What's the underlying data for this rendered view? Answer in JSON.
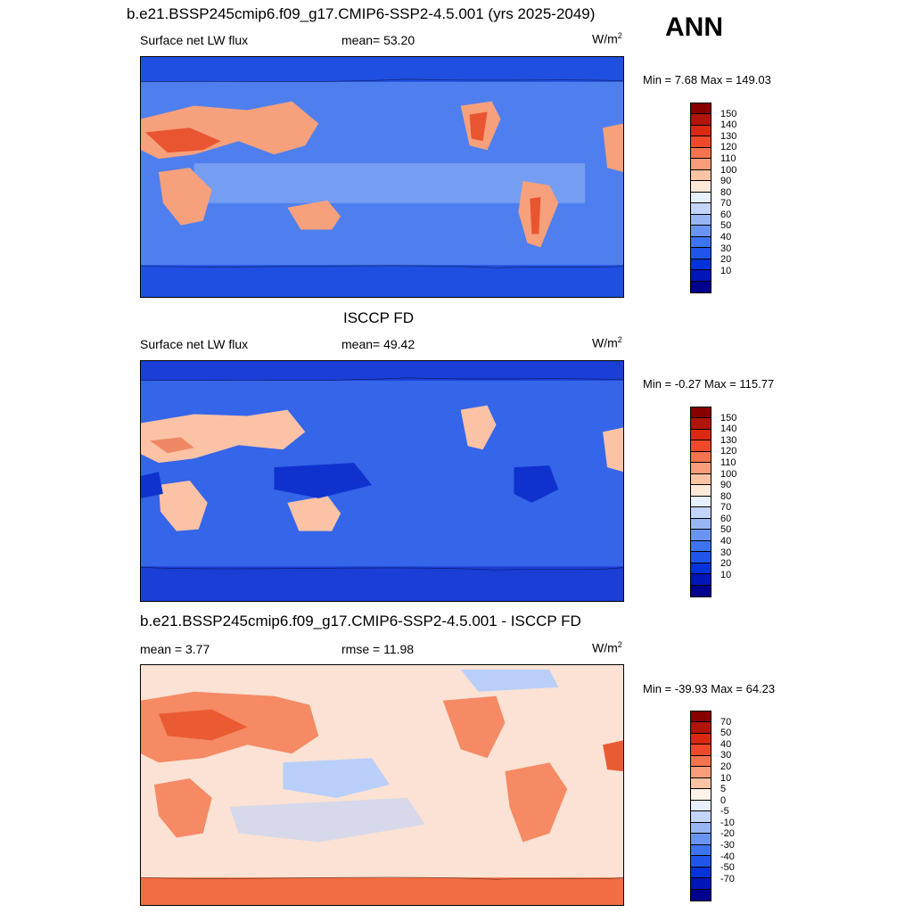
{
  "season": "ANN",
  "panels": [
    {
      "title": "b.e21.BSSP245cmip6.f09_g17.CMIP6-SSP2-4.5.001 (yrs 2025-2049)",
      "left_label": "Surface net LW flux",
      "center_label": "mean=  53.20",
      "units": "W/m",
      "units_sup": "2",
      "minmax": "Min =   7.68 Max = 149.03",
      "colors": [
        "#00008f",
        "#0016b8",
        "#0033d9",
        "#1f55e8",
        "#3e73f0",
        "#6a94f4",
        "#98b4f7",
        "#c2d6fb",
        "#e7f0ff",
        "#ffe8d8",
        "#fdc4a4",
        "#f99d7a",
        "#f4744f",
        "#ee4a29",
        "#d92a10",
        "#b31409",
        "#870000"
      ],
      "ticks": [
        "150",
        "140",
        "130",
        "120",
        "110",
        "100",
        "90",
        "80",
        "70",
        "60",
        "50",
        "40",
        "30",
        "20",
        "10"
      ]
    },
    {
      "title": "ISCCP FD",
      "left_label": "Surface net LW flux",
      "center_label": "mean=  49.42",
      "units": "W/m",
      "units_sup": "2",
      "minmax": "Min =  -0.27 Max = 115.77",
      "colors": [
        "#00008f",
        "#0016b8",
        "#0033d9",
        "#1f55e8",
        "#3e73f0",
        "#6a94f4",
        "#98b4f7",
        "#c2d6fb",
        "#e7f0ff",
        "#ffe8d8",
        "#fdc4a4",
        "#f99d7a",
        "#f4744f",
        "#ee4a29",
        "#d92a10",
        "#b31409",
        "#870000"
      ],
      "ticks": [
        "150",
        "140",
        "130",
        "120",
        "110",
        "100",
        "90",
        "80",
        "70",
        "60",
        "50",
        "40",
        "30",
        "20",
        "10"
      ]
    },
    {
      "title": "b.e21.BSSP245cmip6.f09_g17.CMIP6-SSP2-4.5.001 - ISCCP FD",
      "left_label": "mean =   3.77",
      "center_label": "rmse =  11.98",
      "units": "W/m",
      "units_sup": "2",
      "minmax": "Min = -39.93 Max =  64.23",
      "colors": [
        "#00008f",
        "#0016b8",
        "#0033d9",
        "#1f55e8",
        "#3e73f0",
        "#6a94f4",
        "#98b4f7",
        "#c2d6fb",
        "#e7f0ff",
        "#fff2e8",
        "#fdc4a4",
        "#f99d7a",
        "#f4744f",
        "#ee4a29",
        "#d92a10",
        "#b31409",
        "#870000"
      ],
      "ticks": [
        "70",
        "50",
        "40",
        "30",
        "20",
        "10",
        "5",
        "0",
        "-5",
        "-10",
        "-20",
        "-30",
        "-40",
        "-50",
        "-70"
      ]
    }
  ],
  "map_colors": {
    "model": {
      "ocean": "#4f7fee",
      "polar": "#1f4fe0",
      "land": "#f7a07c",
      "hot": "#e95431",
      "tropics": "#8fb0f5"
    },
    "obs": {
      "ocean": "#3565e8",
      "polar": "#1a3ed6",
      "land": "#fbc2a6",
      "hot": "#f08764",
      "tropics": "#0f32cf"
    },
    "diff": {
      "ocean": "#fbe2d4",
      "polar": "#f26c44",
      "land": "#f58a64",
      "hot": "#ea5b34",
      "tropics": "#b9cffa"
    }
  }
}
